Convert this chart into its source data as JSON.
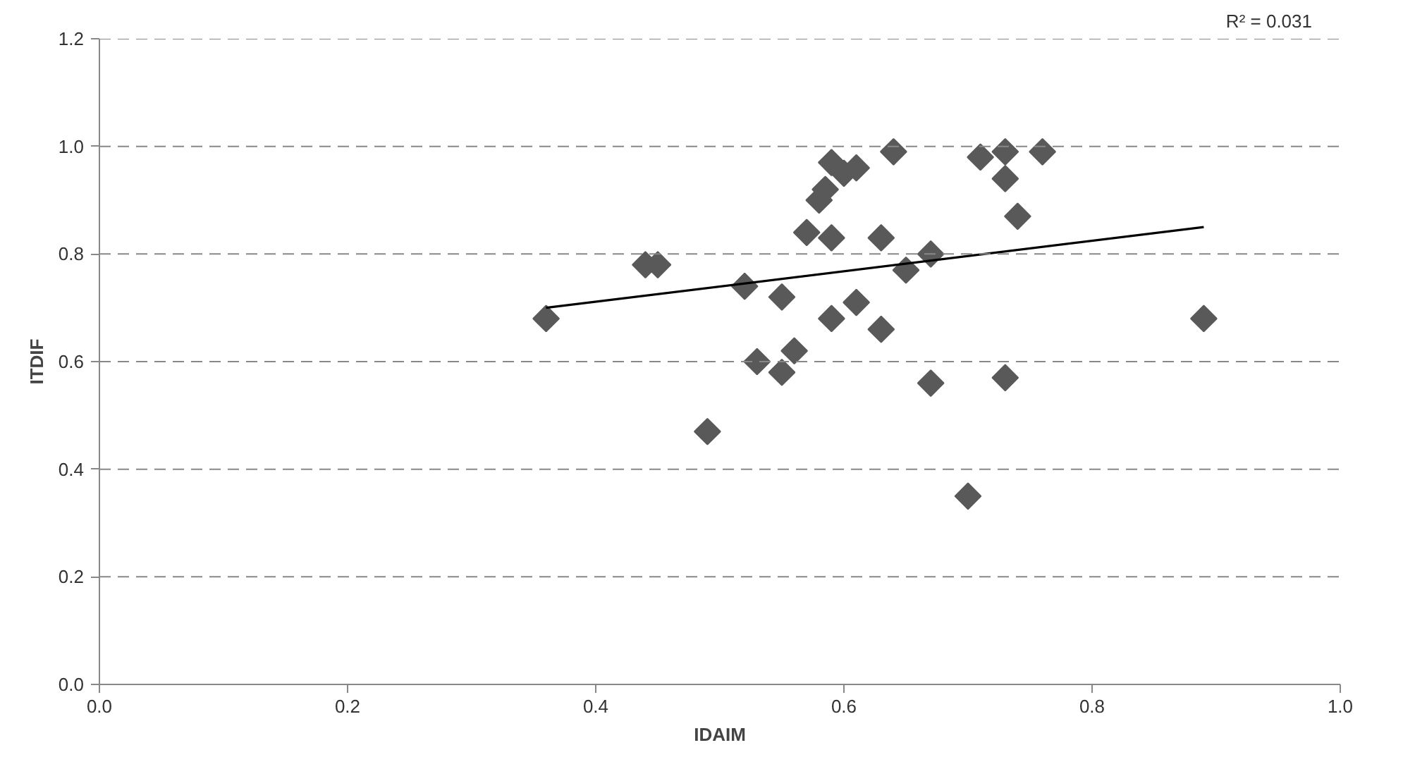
{
  "chart_data": {
    "type": "scatter",
    "xlabel": "IDAIM",
    "ylabel": "ITDIF",
    "annotations": [
      "R² = 0.031"
    ],
    "xlim": [
      0,
      1
    ],
    "ylim": [
      0,
      1.2
    ],
    "xticks": [
      {
        "value": 0,
        "label": "0.0"
      },
      0.2,
      0.4,
      0.6,
      0.8,
      {
        "value": 1,
        "label": "1.0"
      }
    ],
    "yticks": [
      {
        "value": 0,
        "label": "0.0"
      },
      0.2,
      0.4,
      0.6,
      0.8,
      {
        "value": 1,
        "label": "1.0"
      },
      1.2
    ],
    "grid": "y",
    "marker": "diamond",
    "series": [
      {
        "color": "#595959",
        "x": [
          0.36,
          0.44,
          0.45,
          0.49,
          0.52,
          0.53,
          0.55,
          0.55,
          0.56,
          0.57,
          0.58,
          0.585,
          0.59,
          0.59,
          0.59,
          0.6,
          0.61,
          0.61,
          0.63,
          0.63,
          0.64,
          0.65,
          0.67,
          0.67,
          0.7,
          0.71,
          0.73,
          0.73,
          0.73,
          0.74,
          0.76,
          0.89
        ],
        "values": [
          0.68,
          0.78,
          0.78,
          0.47,
          0.74,
          0.6,
          0.58,
          0.72,
          0.62,
          0.84,
          0.9,
          0.92,
          0.97,
          0.83,
          0.68,
          0.95,
          0.96,
          0.71,
          0.83,
          0.66,
          0.99,
          0.77,
          0.8,
          0.56,
          0.35,
          0.98,
          0.99,
          0.94,
          0.57,
          0.87,
          0.99,
          0.68
        ]
      },
      {
        "type": "line",
        "color": "#000000",
        "line_style": "solid",
        "marker": "none",
        "x": [
          0.36,
          0.89
        ],
        "values": [
          0.7,
          0.85
        ]
      }
    ]
  }
}
